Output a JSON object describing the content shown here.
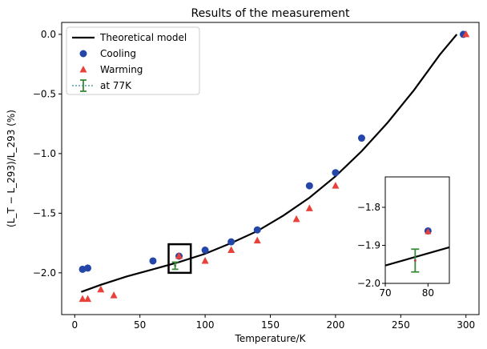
{
  "chart_data": [
    {
      "type": "scatter",
      "title": "Results of the measurement",
      "xlabel": "Temperature/K",
      "ylabel": "(L_T − L_293)/L_293 (%)",
      "xlim": [
        -10,
        310
      ],
      "ylim": [
        -2.35,
        0.1
      ],
      "xticks": [
        0,
        50,
        100,
        150,
        200,
        250,
        300
      ],
      "yticks": [
        0.0,
        -0.5,
        -1.0,
        -1.5,
        -2.0
      ],
      "xtick_labels": [
        "0",
        "50",
        "100",
        "150",
        "200",
        "250",
        "300"
      ],
      "ytick_labels": [
        "0.0",
        "−0.5",
        "−1.0",
        "−1.5",
        "−2.0"
      ],
      "legend_position": "top-left",
      "grid": false,
      "series": [
        {
          "name": "Theoretical model",
          "kind": "line",
          "color": "#000000",
          "x": [
            5,
            20,
            40,
            60,
            80,
            100,
            120,
            140,
            160,
            180,
            200,
            220,
            240,
            260,
            280,
            293
          ],
          "y": [
            -2.16,
            -2.1,
            -2.03,
            -1.97,
            -1.91,
            -1.84,
            -1.75,
            -1.65,
            -1.52,
            -1.37,
            -1.19,
            -0.98,
            -0.74,
            -0.47,
            -0.17,
            0.0
          ]
        },
        {
          "name": "Cooling",
          "kind": "scatter",
          "marker": "circle",
          "color": "#2346a8",
          "x": [
            6,
            10,
            60,
            80,
            100,
            120,
            140,
            180,
            200,
            220,
            298
          ],
          "y": [
            -1.97,
            -1.96,
            -1.9,
            -1.86,
            -1.81,
            -1.74,
            -1.64,
            -1.27,
            -1.16,
            -0.87,
            0.0
          ]
        },
        {
          "name": "Warming",
          "kind": "scatter",
          "marker": "triangle",
          "color": "#e8413a",
          "x": [
            6,
            10,
            20,
            30,
            80,
            100,
            120,
            140,
            170,
            180,
            200,
            300
          ],
          "y": [
            -2.22,
            -2.22,
            -2.14,
            -2.19,
            -1.86,
            -1.9,
            -1.81,
            -1.73,
            -1.55,
            -1.46,
            -1.27,
            0.0
          ]
        },
        {
          "name": "at 77K",
          "kind": "errorbar",
          "color": "#3a8a3a",
          "x": [
            77
          ],
          "y": [
            -1.94
          ],
          "yerr": [
            0.03
          ]
        }
      ]
    },
    {
      "type": "scatter",
      "title": "",
      "role": "inset",
      "xlim": [
        70,
        85
      ],
      "ylim": [
        -2.0,
        -1.72
      ],
      "xticks": [
        70,
        80
      ],
      "yticks": [
        -1.8,
        -1.9,
        -2.0
      ],
      "xtick_labels": [
        "70",
        "80"
      ],
      "ytick_labels": [
        "−1.8",
        "−1.9",
        "−2.0"
      ],
      "series": [
        {
          "kind": "line",
          "color": "#000000",
          "x": [
            70,
            85
          ],
          "y": [
            -1.953,
            -1.905
          ]
        },
        {
          "kind": "scatter",
          "marker": "circle",
          "color": "#2346a8",
          "x": [
            80
          ],
          "y": [
            -1.862
          ]
        },
        {
          "kind": "scatter",
          "marker": "triangle",
          "color": "#e8413a",
          "x": [
            80
          ],
          "y": [
            -1.862
          ]
        },
        {
          "kind": "errorbar",
          "color": "#3a8a3a",
          "x": [
            77
          ],
          "y": [
            -1.94
          ],
          "yerr": [
            0.03
          ]
        }
      ]
    }
  ]
}
